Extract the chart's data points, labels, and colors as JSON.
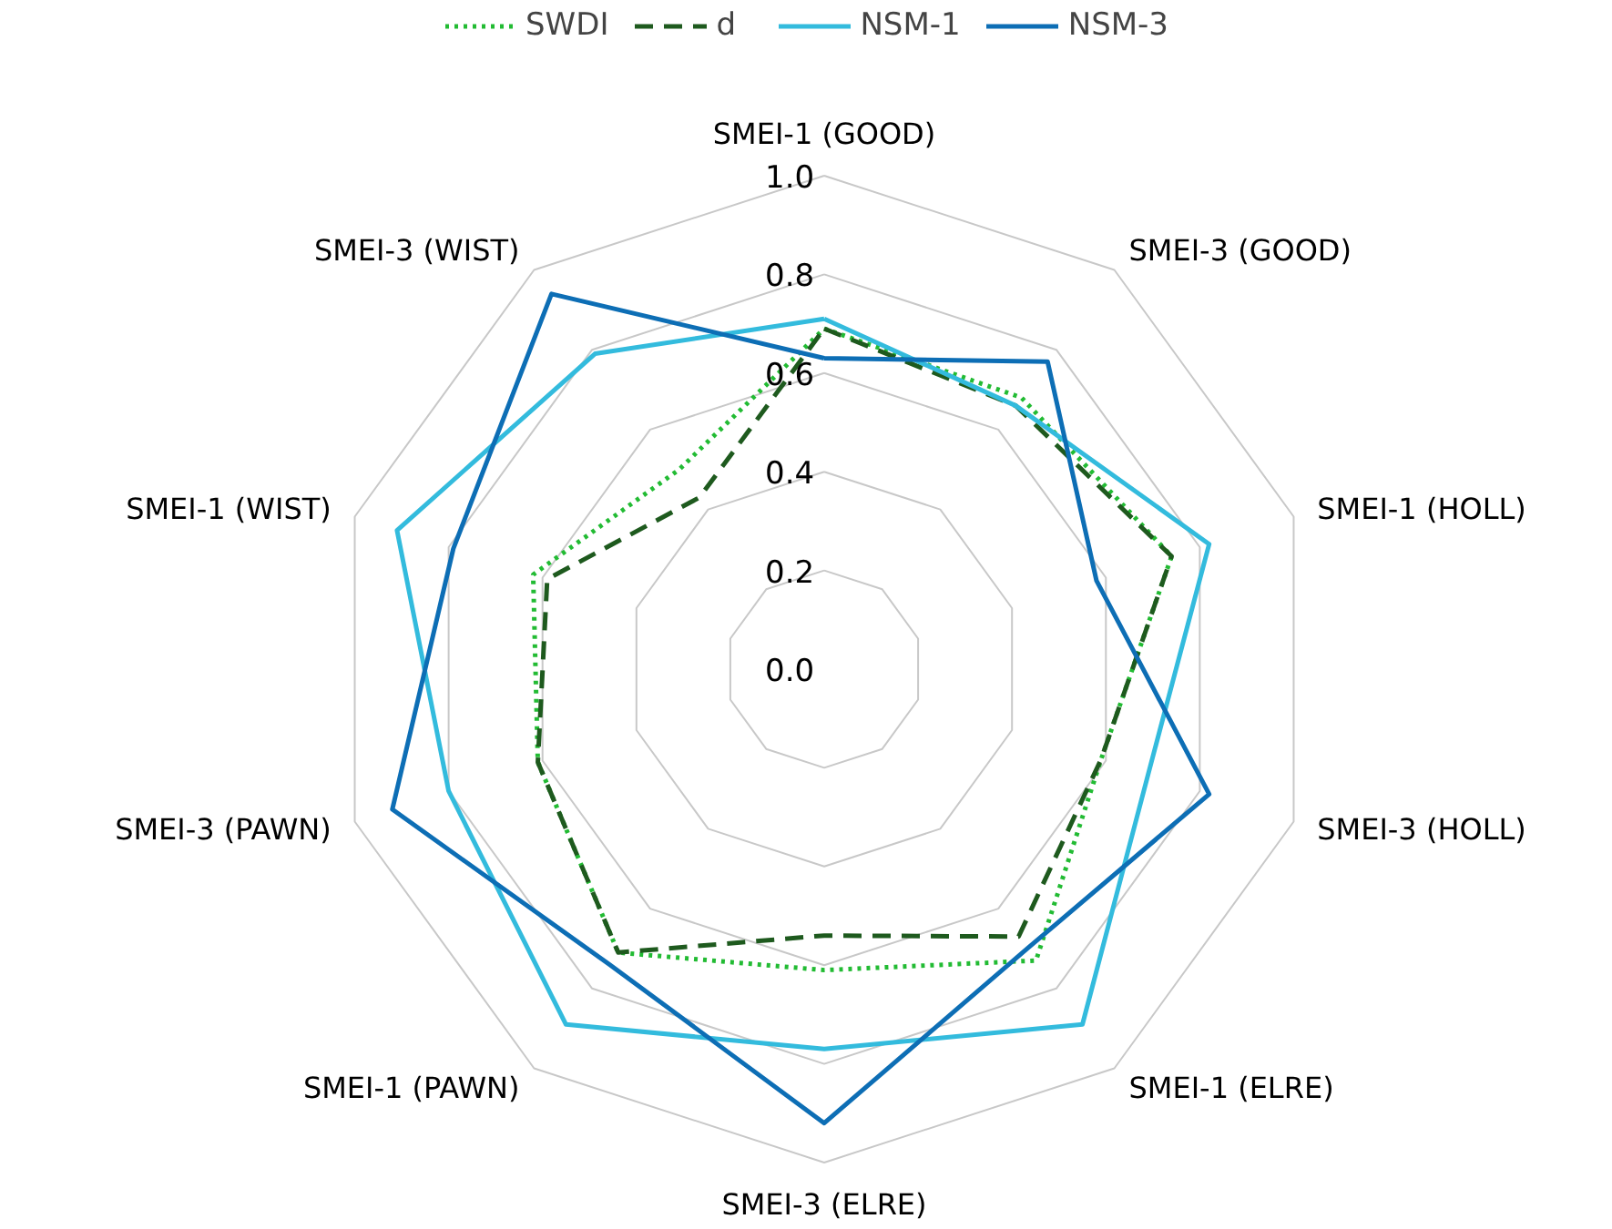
{
  "chart_data": {
    "type": "radar",
    "categories": [
      "SMEI-1 (GOOD)",
      "SMEI-3 (GOOD)",
      "SMEI-1 (HOLL)",
      "SMEI-3 (HOLL)",
      "SMEI-1 (ELRE)",
      "SMEI-3 (ELRE)",
      "SMEI-1 (PAWN)",
      "SMEI-3 (PAWN)",
      "SMEI-1 (WIST)",
      "SMEI-3 (WIST)"
    ],
    "series": [
      {
        "name": "SWDI",
        "color": "#22bb33",
        "line_style": "dotted",
        "values": [
          0.69,
          0.68,
          0.74,
          0.59,
          0.73,
          0.61,
          0.71,
          0.61,
          0.62,
          0.5
        ]
      },
      {
        "name": "d",
        "color": "#1e5a1e",
        "line_style": "dashed",
        "values": [
          0.69,
          0.66,
          0.74,
          0.59,
          0.67,
          0.54,
          0.71,
          0.61,
          0.59,
          0.43
        ]
      },
      {
        "name": "NSM-1",
        "color": "#33bbdd",
        "line_style": "solid",
        "values": [
          0.71,
          0.66,
          0.82,
          0.69,
          0.89,
          0.77,
          0.89,
          0.8,
          0.91,
          0.79
        ]
      },
      {
        "name": "NSM-3",
        "color": "#0d6eb5",
        "line_style": "solid",
        "values": [
          0.63,
          0.77,
          0.58,
          0.82,
          0.7,
          0.92,
          0.74,
          0.92,
          0.79,
          0.94
        ]
      }
    ],
    "ylim": [
      0,
      1
    ],
    "yticks": [
      {
        "value": 0,
        "label": "0.0"
      },
      {
        "value": 0.2,
        "label": "0.2"
      },
      {
        "value": 0.4,
        "label": "0.4"
      },
      {
        "value": 0.6,
        "label": "0.6"
      },
      {
        "value": 0.8,
        "label": "0.8"
      },
      {
        "value": 1,
        "label": "1.0"
      }
    ],
    "grid": true,
    "legend": "top",
    "marker": "none"
  }
}
